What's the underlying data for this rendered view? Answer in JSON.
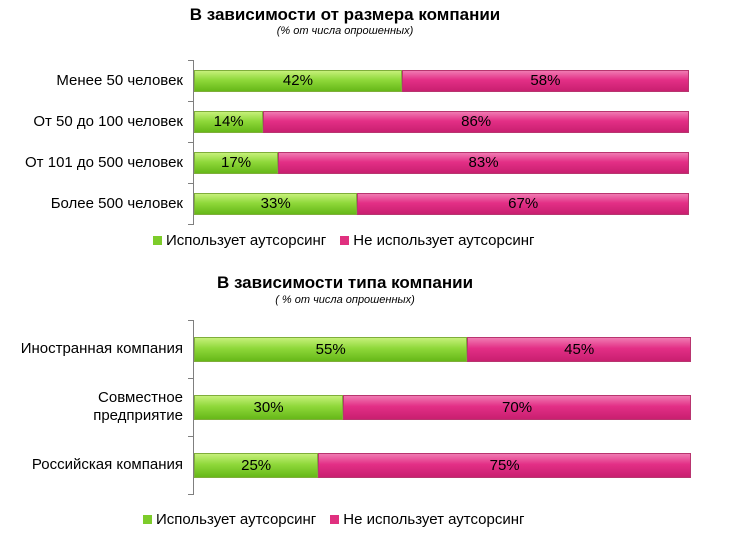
{
  "chart_data": [
    {
      "type": "bar",
      "orientation": "horizontal",
      "stacked": true,
      "title": "В зависимости от размера компании",
      "subtitle": "(% от числа опрошенных)",
      "categories": [
        "Менее 50 человек",
        "От 50 до 100 человек",
        "От 101 до 500 человек",
        "Более 500 человек"
      ],
      "series": [
        {
          "name": "Использует аутсорсинг",
          "values": [
            42,
            14,
            17,
            33
          ],
          "labels": [
            "42%",
            "14%",
            "17%",
            "33%"
          ],
          "color": "#7dcc2a"
        },
        {
          "name": "Не использует аутсорсинг",
          "values": [
            58,
            86,
            83,
            67
          ],
          "labels": [
            "58%",
            "86%",
            "83%",
            "67%"
          ],
          "color": "#e0307f"
        }
      ],
      "xlim": [
        0,
        100
      ],
      "legend": "bottom"
    },
    {
      "type": "bar",
      "orientation": "horizontal",
      "stacked": true,
      "title": "В зависимости типа компании",
      "subtitle": "( % от числа опрошенных)",
      "categories": [
        "Иностранная компания",
        "Совместное предприятие",
        "Российская компания"
      ],
      "series": [
        {
          "name": "Использует аутсорсинг",
          "values": [
            55,
            30,
            25
          ],
          "labels": [
            "55%",
            "30%",
            "25%"
          ],
          "color": "#7dcc2a"
        },
        {
          "name": "Не использует аутсорсинг",
          "values": [
            45,
            70,
            75
          ],
          "labels": [
            "45%",
            "70%",
            "75%"
          ],
          "color": "#e0307f"
        }
      ],
      "xlim": [
        0,
        100
      ],
      "legend": "bottom"
    }
  ]
}
